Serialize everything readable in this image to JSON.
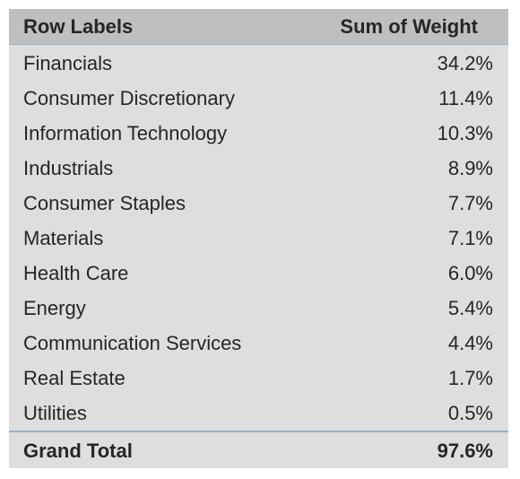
{
  "pivot_table": {
    "header": {
      "row_labels": "Row Labels",
      "sum_of_weight": "Sum of Weight"
    },
    "rows": [
      {
        "label": "Financials",
        "value": "34.2%"
      },
      {
        "label": "Consumer Discretionary",
        "value": "11.4%"
      },
      {
        "label": "Information Technology",
        "value": "10.3%"
      },
      {
        "label": "Industrials",
        "value": "8.9%"
      },
      {
        "label": "Consumer Staples",
        "value": "7.7%"
      },
      {
        "label": "Materials",
        "value": "7.1%"
      },
      {
        "label": "Health Care",
        "value": "6.0%"
      },
      {
        "label": "Energy",
        "value": "5.4%"
      },
      {
        "label": "Communication Services",
        "value": "4.4%"
      },
      {
        "label": "Real Estate",
        "value": "1.7%"
      },
      {
        "label": "Utilities",
        "value": "0.5%"
      }
    ],
    "grand_total": {
      "label": "Grand Total",
      "value": "97.6%"
    }
  }
}
